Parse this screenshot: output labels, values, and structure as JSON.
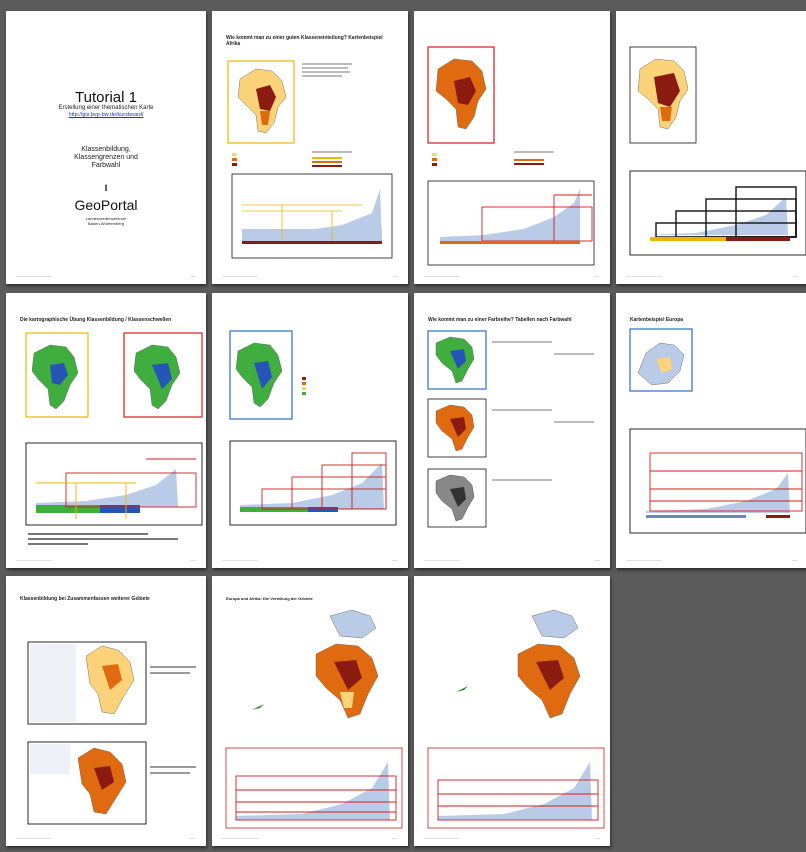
{
  "colors": {
    "viewer_bg": "#5b5b5b",
    "page": "#ffffff",
    "box_red": "#d81b1b",
    "box_yellow": "#f0b400",
    "box_blue": "#2a6fd0",
    "link": "#1a34d8",
    "map_dark": "#8b1a10",
    "map_mid": "#e06a10",
    "map_light": "#fdd37a",
    "map_green": "#3fae3f",
    "map_blue": "#2655b8",
    "bar_fill": "#b9cbe6"
  },
  "pages": [
    {
      "id": "p1",
      "title_main": "Tutorial 1",
      "subtitle": "Erstellung einer thematischen Karte",
      "link": "http://gis.bvp-bw.de/kursboard/",
      "middle_line1": "Klassenbildung,",
      "middle_line2": "Klassengrenzen und",
      "middle_line3": "Farbwahl",
      "separator": "I",
      "geoportal": "GeoPortal",
      "author_line1": "Landesmedienzentrum",
      "author_line2": "Baden-Württemberg"
    },
    {
      "id": "p2",
      "heading": "Wie kommt man zu einer guten Klasseneinteilung? Kartenbeispiel Afrika"
    },
    {
      "id": "p3",
      "heading": ""
    },
    {
      "id": "p4",
      "heading": ""
    },
    {
      "id": "p5",
      "heading": "Die kartographische Übung Klassenbildung / Klassenschwellen"
    },
    {
      "id": "p6",
      "heading": ""
    },
    {
      "id": "p7",
      "heading": "Wie kommt man zu einer Farbreihe? Tabellen nach Farbwahl"
    },
    {
      "id": "p8",
      "heading": "Kartenbeispiel Europa"
    },
    {
      "id": "p9",
      "heading": "Klassenbildung bei Zusammenfassen weiterer Gebiete"
    },
    {
      "id": "p10",
      "heading": "Europa und Afrika: Die Verteilung der Gebiete"
    },
    {
      "id": "p11",
      "heading": ""
    }
  ]
}
